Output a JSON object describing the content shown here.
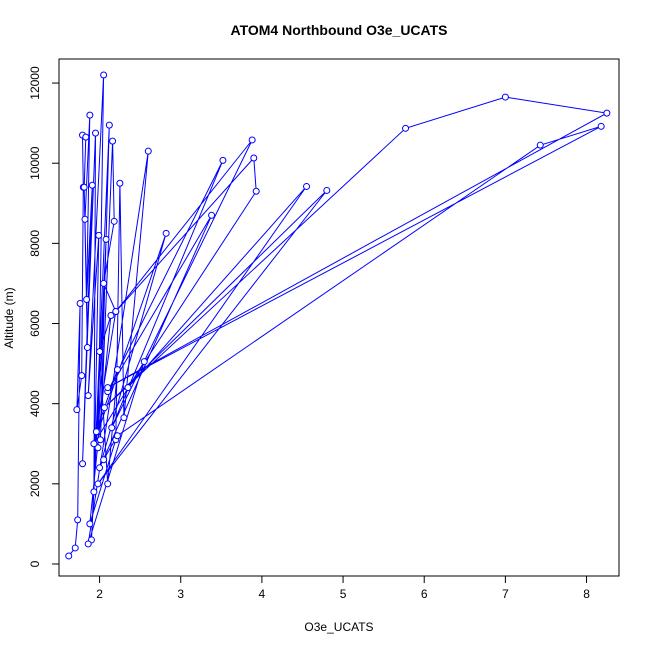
{
  "chart_data": {
    "type": "line",
    "title": "ATOM4 Northbound O3e_UCATS",
    "xlabel": "O3e_UCATS",
    "ylabel": "Altitude (m)",
    "xlim": [
      1.5,
      8.4
    ],
    "ylim": [
      -300,
      12600
    ],
    "xticks": [
      2,
      3,
      4,
      5,
      6,
      7,
      8
    ],
    "yticks": [
      0,
      2000,
      4000,
      6000,
      8000,
      10000,
      12000
    ],
    "grid": false,
    "legend": "none",
    "markers": "open circles",
    "series_color": "#0000ff",
    "series": [
      {
        "x": [
          1.62,
          1.7,
          1.73,
          1.76,
          1.72,
          1.78,
          1.8,
          1.79,
          1.83,
          1.81,
          1.85,
          1.82,
          1.88,
          1.84,
          1.91,
          1.79,
          1.95,
          1.93,
          1.99,
          1.86,
          2.05,
          1.98,
          2.08,
          1.9,
          2.12,
          2.01,
          2.16,
          2.18,
          2.05,
          2.2,
          1.96,
          2.22,
          2.1,
          2.0,
          2.14,
          1.88,
          2.2,
          2.25,
          2.3,
          2.6,
          1.86,
          2.55,
          1.93,
          2.82,
          2.0,
          3.38,
          2.1,
          3.52,
          2.15,
          3.88,
          2.2,
          3.9,
          3.93,
          2.35,
          4.55,
          1.98,
          4.8,
          2.06,
          5.77,
          7.0,
          8.25,
          2.1,
          8.18,
          7.43,
          2.22,
          2.05
        ],
        "y": [
          200,
          400,
          1100,
          6500,
          3850,
          4700,
          9400,
          10700,
          10650,
          9400,
          5400,
          8600,
          11200,
          6600,
          9450,
          2500,
          10750,
          1800,
          8200,
          4200,
          12200,
          2900,
          8100,
          600,
          10950,
          3100,
          10550,
          8550,
          7000,
          6300,
          3300,
          4850,
          2000,
          5300,
          6200,
          1000,
          3100,
          9500,
          3650,
          10300,
          500,
          5050,
          3000,
          8250,
          2400,
          8700,
          4300,
          10070,
          3400,
          10580,
          6300,
          10130,
          9300,
          4400,
          9420,
          2000,
          9320,
          3900,
          10870,
          11650,
          11250,
          4400,
          10920,
          10450,
          3200,
          2600
        ]
      }
    ]
  }
}
